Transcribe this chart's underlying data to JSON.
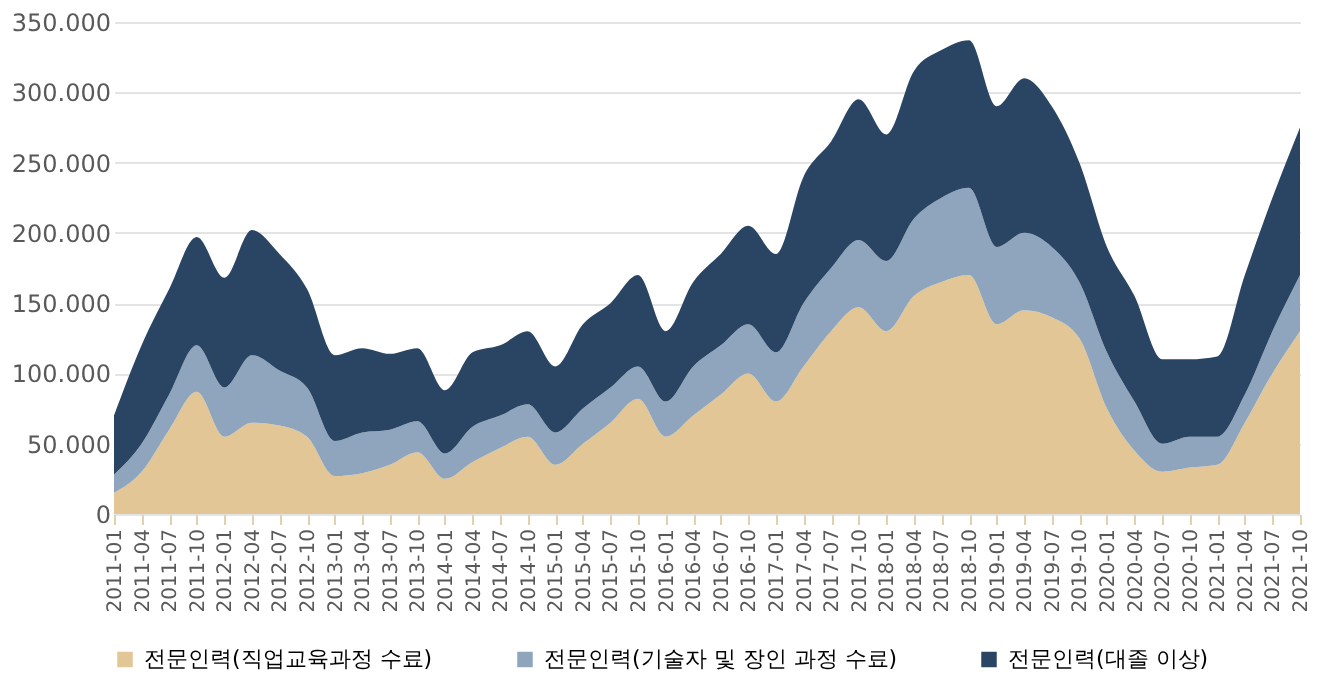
{
  "chart_data": {
    "type": "area",
    "stacked": true,
    "categories": [
      "2011-01",
      "2011-04",
      "2011-07",
      "2011-10",
      "2012-01",
      "2012-04",
      "2012-07",
      "2012-10",
      "2013-01",
      "2013-04",
      "2013-07",
      "2013-10",
      "2014-01",
      "2014-04",
      "2014-07",
      "2014-10",
      "2015-01",
      "2015-04",
      "2015-07",
      "2015-10",
      "2016-01",
      "2016-04",
      "2016-07",
      "2016-10",
      "2017-01",
      "2017-04",
      "2017-07",
      "2017-10",
      "2018-01",
      "2018-04",
      "2018-07",
      "2018-10",
      "2019-01",
      "2019-04",
      "2019-07",
      "2019-10",
      "2020-01",
      "2020-04",
      "2020-07",
      "2020-10",
      "2021-01",
      "2021-04",
      "2021-07",
      "2021-10"
    ],
    "series": [
      {
        "name": "전문인력(직업교육과정 수료)",
        "color": "#e2c696",
        "values": [
          15000,
          30000,
          60000,
          87000,
          55000,
          65000,
          63000,
          55000,
          27000,
          29000,
          35000,
          44000,
          25000,
          37000,
          47000,
          55000,
          35000,
          50000,
          65000,
          82000,
          55000,
          70000,
          85000,
          100000,
          80000,
          105000,
          130000,
          147000,
          130000,
          155000,
          165000,
          170000,
          135000,
          145000,
          140000,
          125000,
          75000,
          45000,
          30000,
          33000,
          35000,
          65000,
          100000,
          130000
        ]
      },
      {
        "name": "전문인력(기술자 및 장인 과정 수료)",
        "color": "#8ea5bd",
        "values": [
          13000,
          20000,
          25000,
          33000,
          35000,
          48000,
          39000,
          35000,
          25000,
          29000,
          25000,
          22000,
          18000,
          25000,
          23000,
          23000,
          23000,
          25000,
          25000,
          23000,
          25000,
          35000,
          35000,
          35000,
          35000,
          45000,
          45000,
          48000,
          50000,
          55000,
          60000,
          62000,
          55000,
          55000,
          50000,
          40000,
          40000,
          35000,
          20000,
          22000,
          20000,
          20000,
          30000,
          40000
        ]
      },
      {
        "name": "전문인력(대졸 이상)",
        "color": "#2a4563",
        "values": [
          42000,
          70000,
          75000,
          77000,
          78000,
          89000,
          83000,
          70000,
          61000,
          60000,
          54000,
          52000,
          45000,
          53000,
          50000,
          52000,
          47000,
          60000,
          60000,
          65000,
          50000,
          60000,
          65000,
          70000,
          70000,
          90000,
          90000,
          100000,
          90000,
          105000,
          105000,
          105000,
          100000,
          110000,
          100000,
          85000,
          75000,
          75000,
          60000,
          55000,
          57000,
          85000,
          95000,
          105000
        ]
      }
    ],
    "ylim": [
      0,
      350000
    ],
    "yticks": [
      0,
      {
        "value": 50000,
        "label": "50.000"
      },
      {
        "value": 100000,
        "label": "100.000"
      },
      {
        "value": 150000,
        "label": "150.000"
      },
      {
        "value": 200000,
        "label": "200.000"
      },
      {
        "value": 250000,
        "label": "250.000"
      },
      {
        "value": 300000,
        "label": "300.000"
      },
      {
        "value": 350000,
        "label": "350.000"
      }
    ],
    "grid": "y",
    "legend": "bottom"
  }
}
